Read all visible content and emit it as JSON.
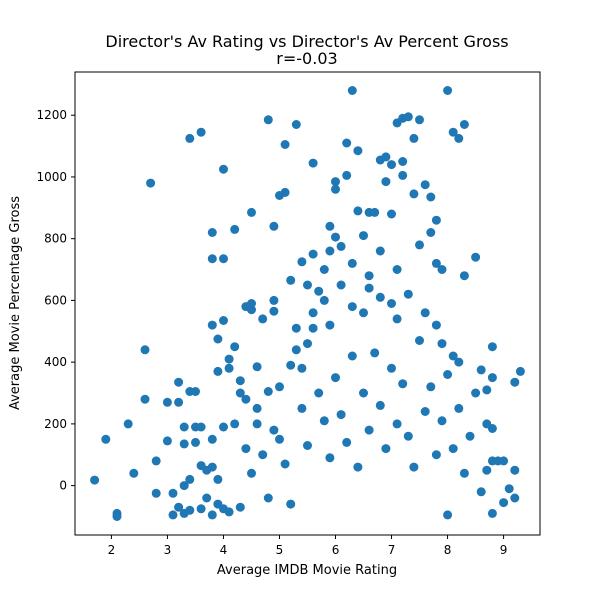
{
  "chart_data": {
    "type": "scatter",
    "title": "Director's Av Rating vs Director's Av Percent Gross",
    "subtitle": "r=-0.03",
    "xlabel": "Average IMDB Movie Rating",
    "ylabel": "Average Movie Percentage Gross",
    "xlim": [
      1.35,
      9.65
    ],
    "ylim": [
      -160,
      1340
    ],
    "xticks": [
      2,
      3,
      4,
      5,
      6,
      7,
      8,
      9
    ],
    "yticks": [
      0,
      200,
      400,
      600,
      800,
      1000,
      1200
    ],
    "grid": false,
    "legend": "none",
    "marker_color": "#1f77b4",
    "points": [
      [
        1.7,
        18
      ],
      [
        1.9,
        150
      ],
      [
        2.1,
        -90
      ],
      [
        2.1,
        -100
      ],
      [
        2.3,
        200
      ],
      [
        2.4,
        40
      ],
      [
        2.6,
        440
      ],
      [
        2.6,
        280
      ],
      [
        2.7,
        980
      ],
      [
        2.8,
        80
      ],
      [
        2.8,
        -25
      ],
      [
        3.0,
        270
      ],
      [
        3.0,
        145
      ],
      [
        3.1,
        -95
      ],
      [
        3.1,
        -25
      ],
      [
        3.2,
        335
      ],
      [
        3.2,
        270
      ],
      [
        3.3,
        190
      ],
      [
        3.3,
        135
      ],
      [
        3.3,
        0
      ],
      [
        3.3,
        -90
      ],
      [
        3.4,
        1125
      ],
      [
        3.4,
        305
      ],
      [
        3.4,
        20
      ],
      [
        3.5,
        305
      ],
      [
        3.5,
        190
      ],
      [
        3.5,
        140
      ],
      [
        3.6,
        1145
      ],
      [
        3.6,
        190
      ],
      [
        3.6,
        65
      ],
      [
        3.7,
        50
      ],
      [
        3.8,
        820
      ],
      [
        3.8,
        735
      ],
      [
        3.8,
        520
      ],
      [
        3.8,
        150
      ],
      [
        3.8,
        60
      ],
      [
        3.8,
        -95
      ],
      [
        3.9,
        475
      ],
      [
        3.9,
        370
      ],
      [
        3.9,
        20
      ],
      [
        3.9,
        -60
      ],
      [
        4.0,
        1025
      ],
      [
        4.0,
        735
      ],
      [
        4.0,
        535
      ],
      [
        4.0,
        190
      ],
      [
        4.0,
        -75
      ],
      [
        4.1,
        410
      ],
      [
        4.1,
        380
      ],
      [
        4.2,
        830
      ],
      [
        4.2,
        450
      ],
      [
        4.2,
        200
      ],
      [
        4.3,
        340
      ],
      [
        4.3,
        300
      ],
      [
        4.4,
        580
      ],
      [
        4.4,
        280
      ],
      [
        4.5,
        885
      ],
      [
        4.5,
        570
      ],
      [
        4.5,
        590
      ],
      [
        4.6,
        385
      ],
      [
        4.6,
        200
      ],
      [
        4.7,
        540
      ],
      [
        4.8,
        1185
      ],
      [
        4.8,
        305
      ],
      [
        4.9,
        840
      ],
      [
        4.9,
        600
      ],
      [
        4.9,
        565
      ],
      [
        5.0,
        940
      ],
      [
        5.0,
        320
      ],
      [
        5.1,
        1105
      ],
      [
        5.1,
        950
      ],
      [
        5.2,
        665
      ],
      [
        5.3,
        1170
      ],
      [
        5.3,
        510
      ],
      [
        5.3,
        440
      ],
      [
        5.4,
        725
      ],
      [
        5.4,
        380
      ],
      [
        5.5,
        650
      ],
      [
        5.6,
        1045
      ],
      [
        5.6,
        750
      ],
      [
        5.6,
        510
      ],
      [
        5.7,
        630
      ],
      [
        5.8,
        700
      ],
      [
        5.9,
        840
      ],
      [
        5.9,
        760
      ],
      [
        6.0,
        985
      ],
      [
        6.0,
        960
      ],
      [
        6.0,
        805
      ],
      [
        6.1,
        775
      ],
      [
        6.2,
        1005
      ],
      [
        6.2,
        1110
      ],
      [
        6.3,
        1280
      ],
      [
        6.3,
        720
      ],
      [
        6.4,
        1085
      ],
      [
        6.4,
        890
      ],
      [
        6.5,
        810
      ],
      [
        6.6,
        885
      ],
      [
        6.6,
        680
      ],
      [
        6.7,
        885
      ],
      [
        6.8,
        1055
      ],
      [
        6.8,
        760
      ],
      [
        6.9,
        985
      ],
      [
        6.9,
        1065
      ],
      [
        7.0,
        1040
      ],
      [
        7.0,
        880
      ],
      [
        7.1,
        1175
      ],
      [
        7.1,
        700
      ],
      [
        7.2,
        1190
      ],
      [
        7.2,
        1050
      ],
      [
        7.2,
        1005
      ],
      [
        7.3,
        1195
      ],
      [
        7.4,
        1125
      ],
      [
        7.4,
        945
      ],
      [
        7.5,
        1185
      ],
      [
        7.5,
        780
      ],
      [
        7.6,
        975
      ],
      [
        7.7,
        935
      ],
      [
        7.7,
        820
      ],
      [
        7.8,
        860
      ],
      [
        7.8,
        720
      ],
      [
        7.9,
        700
      ],
      [
        8.0,
        1280
      ],
      [
        8.1,
        1145
      ],
      [
        8.2,
        1125
      ],
      [
        8.3,
        1170
      ],
      [
        8.3,
        680
      ],
      [
        8.5,
        740
      ],
      [
        8.6,
        375
      ],
      [
        8.7,
        310
      ],
      [
        8.7,
        50
      ],
      [
        8.8,
        80
      ],
      [
        8.8,
        185
      ],
      [
        8.8,
        350
      ],
      [
        8.8,
        450
      ],
      [
        9.0,
        80
      ],
      [
        9.0,
        -55
      ],
      [
        9.2,
        335
      ],
      [
        9.2,
        50
      ],
      [
        9.2,
        -40
      ],
      [
        9.3,
        370
      ],
      [
        3.2,
        -70
      ],
      [
        3.4,
        -80
      ],
      [
        3.6,
        -75
      ],
      [
        3.7,
        -40
      ],
      [
        4.1,
        -85
      ],
      [
        4.3,
        -70
      ],
      [
        4.4,
        120
      ],
      [
        4.5,
        40
      ],
      [
        4.7,
        100
      ],
      [
        4.8,
        -40
      ],
      [
        5.0,
        150
      ],
      [
        5.1,
        70
      ],
      [
        5.2,
        -60
      ],
      [
        5.4,
        250
      ],
      [
        5.5,
        130
      ],
      [
        5.7,
        300
      ],
      [
        5.8,
        210
      ],
      [
        5.9,
        90
      ],
      [
        6.0,
        350
      ],
      [
        6.1,
        230
      ],
      [
        6.2,
        140
      ],
      [
        6.3,
        420
      ],
      [
        6.4,
        60
      ],
      [
        6.5,
        300
      ],
      [
        6.6,
        180
      ],
      [
        6.7,
        430
      ],
      [
        6.8,
        260
      ],
      [
        6.9,
        120
      ],
      [
        7.0,
        380
      ],
      [
        7.1,
        200
      ],
      [
        7.2,
        330
      ],
      [
        7.3,
        160
      ],
      [
        7.4,
        60
      ],
      [
        7.5,
        470
      ],
      [
        7.6,
        240
      ],
      [
        7.7,
        320
      ],
      [
        7.8,
        100
      ],
      [
        7.9,
        210
      ],
      [
        8.0,
        360
      ],
      [
        8.1,
        120
      ],
      [
        8.2,
        250
      ],
      [
        8.3,
        40
      ],
      [
        8.4,
        160
      ],
      [
        8.5,
        300
      ],
      [
        8.6,
        -20
      ],
      [
        8.7,
        200
      ],
      [
        8.8,
        -90
      ],
      [
        8.9,
        80
      ],
      [
        9.1,
        -10
      ],
      [
        8.0,
        -95
      ],
      [
        4.6,
        250
      ],
      [
        4.9,
        180
      ],
      [
        5.2,
        390
      ],
      [
        5.5,
        460
      ],
      [
        5.6,
        560
      ],
      [
        5.8,
        600
      ],
      [
        5.9,
        520
      ],
      [
        6.1,
        650
      ],
      [
        6.3,
        580
      ],
      [
        6.5,
        560
      ],
      [
        6.6,
        640
      ],
      [
        6.8,
        610
      ],
      [
        7.0,
        590
      ],
      [
        7.1,
        540
      ],
      [
        7.3,
        620
      ],
      [
        7.6,
        560
      ],
      [
        7.8,
        520
      ],
      [
        7.9,
        460
      ],
      [
        8.1,
        420
      ],
      [
        8.2,
        400
      ]
    ]
  }
}
